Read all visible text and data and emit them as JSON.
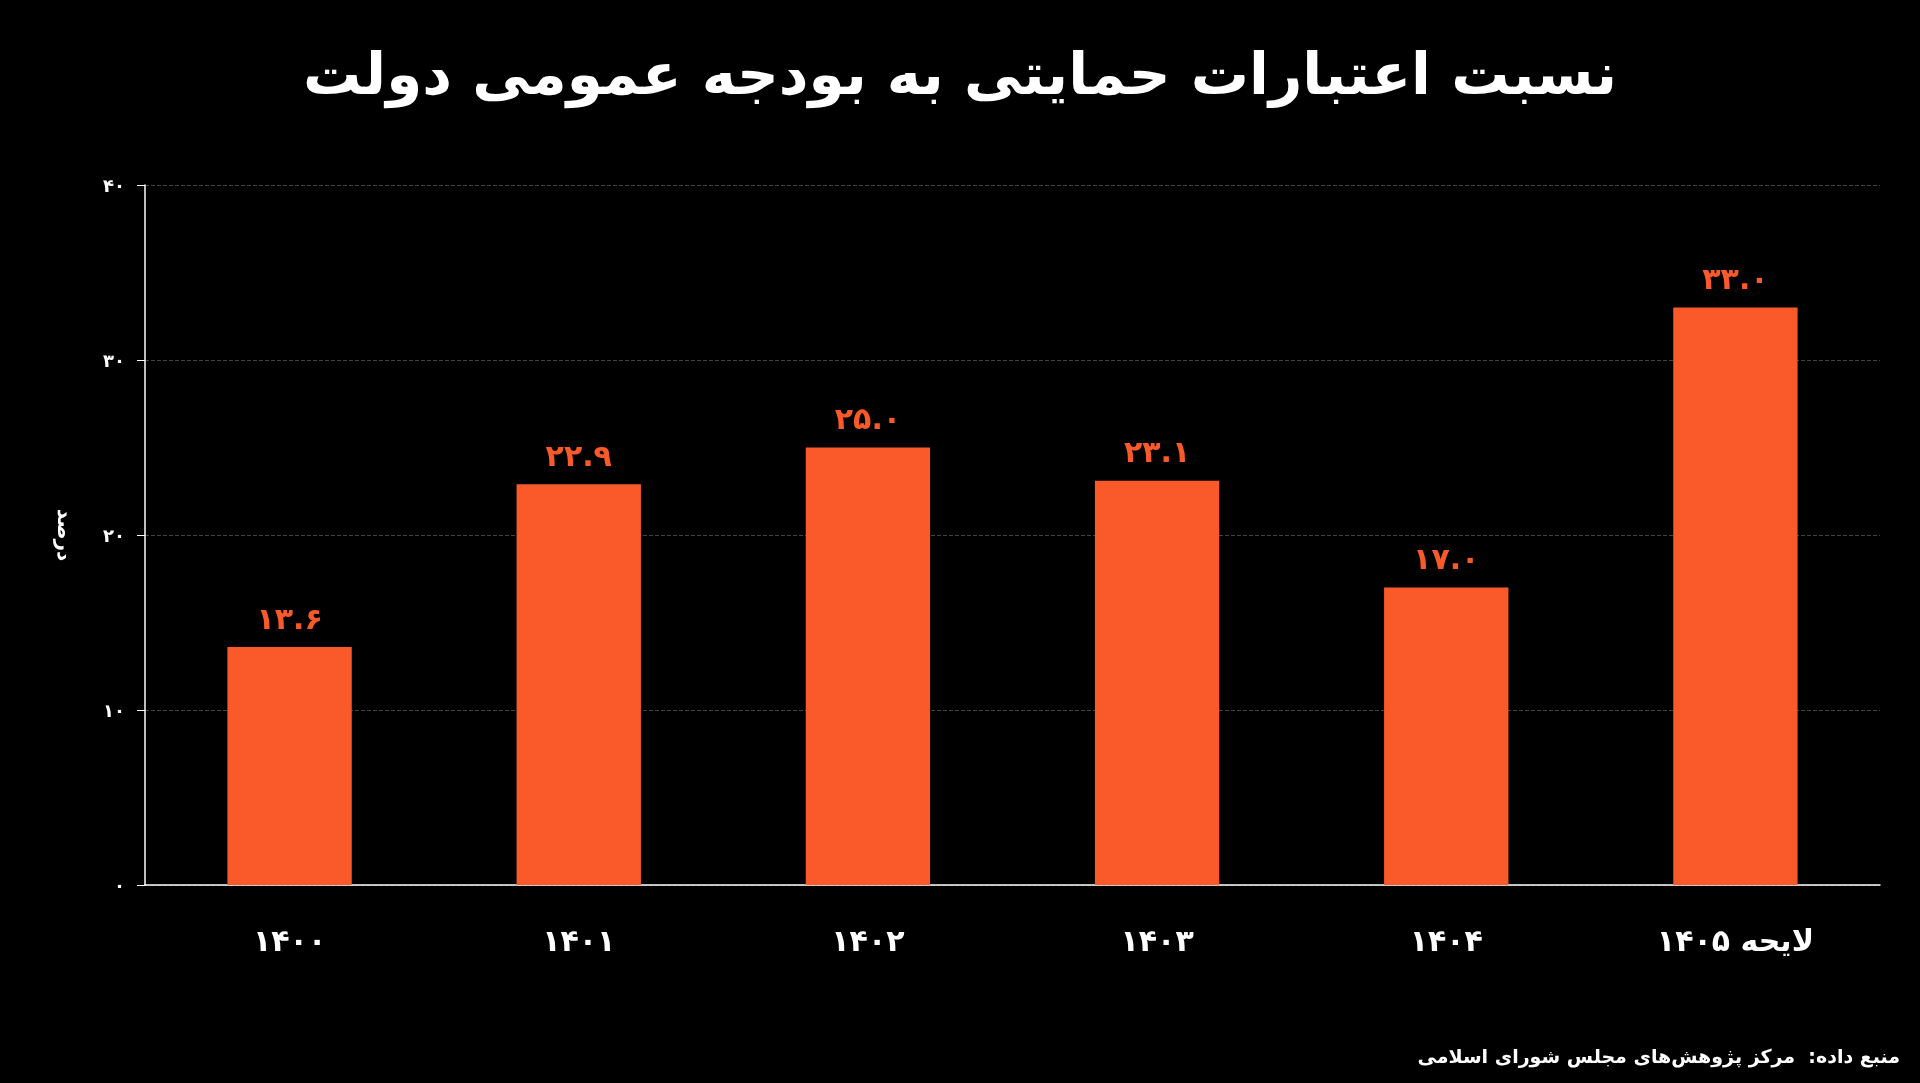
{
  "chart_data": {
    "type": "bar",
    "title": "نسبت اعتبارات حمایتی به بودجه عمومی دولت",
    "ylabel": "درصد",
    "annotations": [
      "منبع داده:  مرکز پژوهش‌های مجلس شورای اسلامی"
    ],
    "categories": [
      "۱۴۰۰",
      "۱۴۰۱",
      "۱۴۰۲",
      "۱۴۰۳",
      "۱۴۰۴",
      "لایحه ۱۴۰۵"
    ],
    "values": [
      13.6,
      22.9,
      25.0,
      23.1,
      17.0,
      33.0
    ],
    "value_labels": [
      "۱۳.۶",
      "۲۲.۹",
      "۲۵.۰",
      "۲۳.۱",
      "۱۷.۰",
      "۳۳.۰"
    ],
    "color": "#fa5a2a",
    "ylim": [
      0,
      40
    ],
    "yticks": [
      {
        "value": 0,
        "label": "۰"
      },
      {
        "value": 10,
        "label": "۱۰"
      },
      {
        "value": 20,
        "label": "۲۰"
      },
      {
        "value": 30,
        "label": "۳۰"
      },
      {
        "value": 40,
        "label": "۴۰"
      }
    ],
    "grid": "y"
  }
}
